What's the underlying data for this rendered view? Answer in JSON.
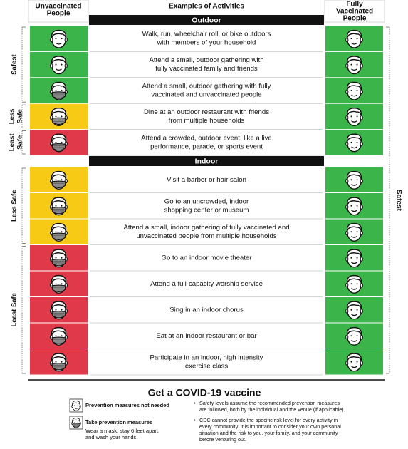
{
  "header": {
    "left": [
      "Unvaccinated",
      "People"
    ],
    "center": "Examples of Activities",
    "right": [
      "Fully",
      "Vaccinated",
      "People"
    ]
  },
  "right_column": {
    "label": "Safest",
    "color": "#3bb54a"
  },
  "sections": [
    {
      "title": "Outdoor",
      "groups": [
        {
          "label": [
            "Safest"
          ],
          "color": "#3bb54a",
          "rows": [
            {
              "lines": [
                "Walk, run, wheelchair roll, or bike outdoors",
                "with members of your household"
              ],
              "mask": false
            },
            {
              "lines": [
                "Attend a small, outdoor gathering with",
                "fully vaccinated family and friends"
              ],
              "mask": false
            },
            {
              "lines": [
                "Attend a small, outdoor gathering with fully",
                "vaccinated and unvaccinated people"
              ],
              "mask": true
            }
          ]
        },
        {
          "label": [
            "Less",
            "Safe"
          ],
          "color": "#f7cb15",
          "rows": [
            {
              "lines": [
                "Dine at an outdoor restaurant with friends",
                "from multiple households"
              ],
              "mask": true
            }
          ]
        },
        {
          "label": [
            "Least",
            "Safe"
          ],
          "color": "#e03a4a",
          "rows": [
            {
              "lines": [
                "Attend a crowded, outdoor event, like a live",
                "performance, parade, or sports event"
              ],
              "mask": true
            }
          ]
        }
      ]
    },
    {
      "title": "Indoor",
      "groups": [
        {
          "label": [
            "Less Safe"
          ],
          "color": "#f7cb15",
          "rows": [
            {
              "lines": [
                "Visit a barber or hair salon"
              ],
              "mask": true
            },
            {
              "lines": [
                "Go to an uncrowded, indoor",
                "shopping center or museum"
              ],
              "mask": true
            },
            {
              "lines": [
                "Attend a small, indoor gathering of fully vaccinated and",
                "unvaccinated people from multiple households"
              ],
              "mask": true
            }
          ]
        },
        {
          "label": [
            "Least Safe"
          ],
          "color": "#e03a4a",
          "rows": [
            {
              "lines": [
                "Go to an indoor movie theater"
              ],
              "mask": true
            },
            {
              "lines": [
                "Attend a full-capacity worship service"
              ],
              "mask": true
            },
            {
              "lines": [
                "Sing in an indoor chorus"
              ],
              "mask": true
            },
            {
              "lines": [
                "Eat at an indoor restaurant or bar"
              ],
              "mask": true
            },
            {
              "lines": [
                "Participate in an indoor, high intensity",
                "exercise class"
              ],
              "mask": true
            }
          ]
        }
      ]
    }
  ],
  "footer": {
    "title": "Get a COVID-19 vaccine",
    "legend": [
      {
        "title": "Prevention measures not needed",
        "lines": []
      },
      {
        "title": "Take prevention measures",
        "lines": [
          "Wear a mask, stay 6 feet apart,",
          "and wash your hands."
        ]
      }
    ],
    "notes": [
      [
        "Safety levels assume the recommended prevention measures",
        "are followed, both by the individual and the venue (if applicable)."
      ],
      [
        "CDC cannot provide the specific risk level for every activity in",
        "every community. It is important to consider your own personal",
        "situation and the risk to you, your family, and your community",
        "before venturing out."
      ]
    ]
  }
}
